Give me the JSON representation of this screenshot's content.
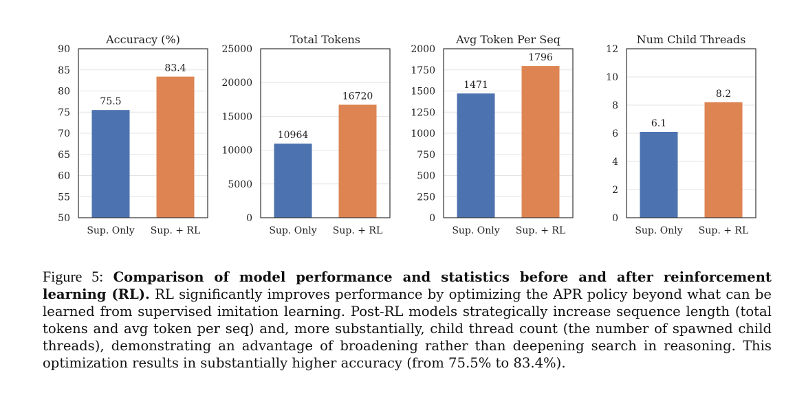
{
  "chart_data": [
    {
      "type": "bar",
      "title": "Accuracy (%)",
      "categories": [
        "Sup. Only",
        "Sup. + RL"
      ],
      "values": [
        75.5,
        83.4
      ],
      "value_labels": [
        "75.5",
        "83.4"
      ],
      "colors": [
        "#4c72b0",
        "#dd8452"
      ],
      "ylim": [
        50,
        90
      ],
      "yticks": [
        50,
        55,
        60,
        65,
        70,
        75,
        80,
        85,
        90
      ],
      "grid": true
    },
    {
      "type": "bar",
      "title": "Total Tokens",
      "categories": [
        "Sup. Only",
        "Sup. + RL"
      ],
      "values": [
        10964,
        16720
      ],
      "value_labels": [
        "10964",
        "16720"
      ],
      "colors": [
        "#4c72b0",
        "#dd8452"
      ],
      "ylim": [
        0,
        25000
      ],
      "yticks": [
        0,
        5000,
        10000,
        15000,
        20000,
        25000
      ],
      "grid": true
    },
    {
      "type": "bar",
      "title": "Avg Token Per Seq",
      "categories": [
        "Sup. Only",
        "Sup. + RL"
      ],
      "values": [
        1471,
        1796
      ],
      "value_labels": [
        "1471",
        "1796"
      ],
      "colors": [
        "#4c72b0",
        "#dd8452"
      ],
      "ylim": [
        0,
        2000
      ],
      "yticks": [
        0,
        250,
        500,
        750,
        1000,
        1250,
        1500,
        1750,
        2000
      ],
      "grid": true
    },
    {
      "type": "bar",
      "title": "Num Child Threads",
      "categories": [
        "Sup. Only",
        "Sup. + RL"
      ],
      "values": [
        6.1,
        8.2
      ],
      "value_labels": [
        "6.1",
        "8.2"
      ],
      "colors": [
        "#4c72b0",
        "#dd8452"
      ],
      "ylim": [
        0,
        12
      ],
      "yticks": [
        0,
        2,
        4,
        6,
        8,
        10,
        12
      ],
      "grid": true
    }
  ],
  "caption": {
    "label": "Figure 5:",
    "bold": "Comparison of model performance and statistics before and after reinforcement learning (RL).",
    "text": "RL significantly improves performance by optimizing the APR policy beyond what can be learned from supervised imitation learning. Post-RL models strategically increase sequence length (total tokens and avg token per seq) and, more substantially, child thread count (the number of spawned child threads), demonstrating an advantage of broadening rather than deepening search in reasoning. This optimization results in substantially higher accuracy (from 75.5% to 83.4%)."
  }
}
